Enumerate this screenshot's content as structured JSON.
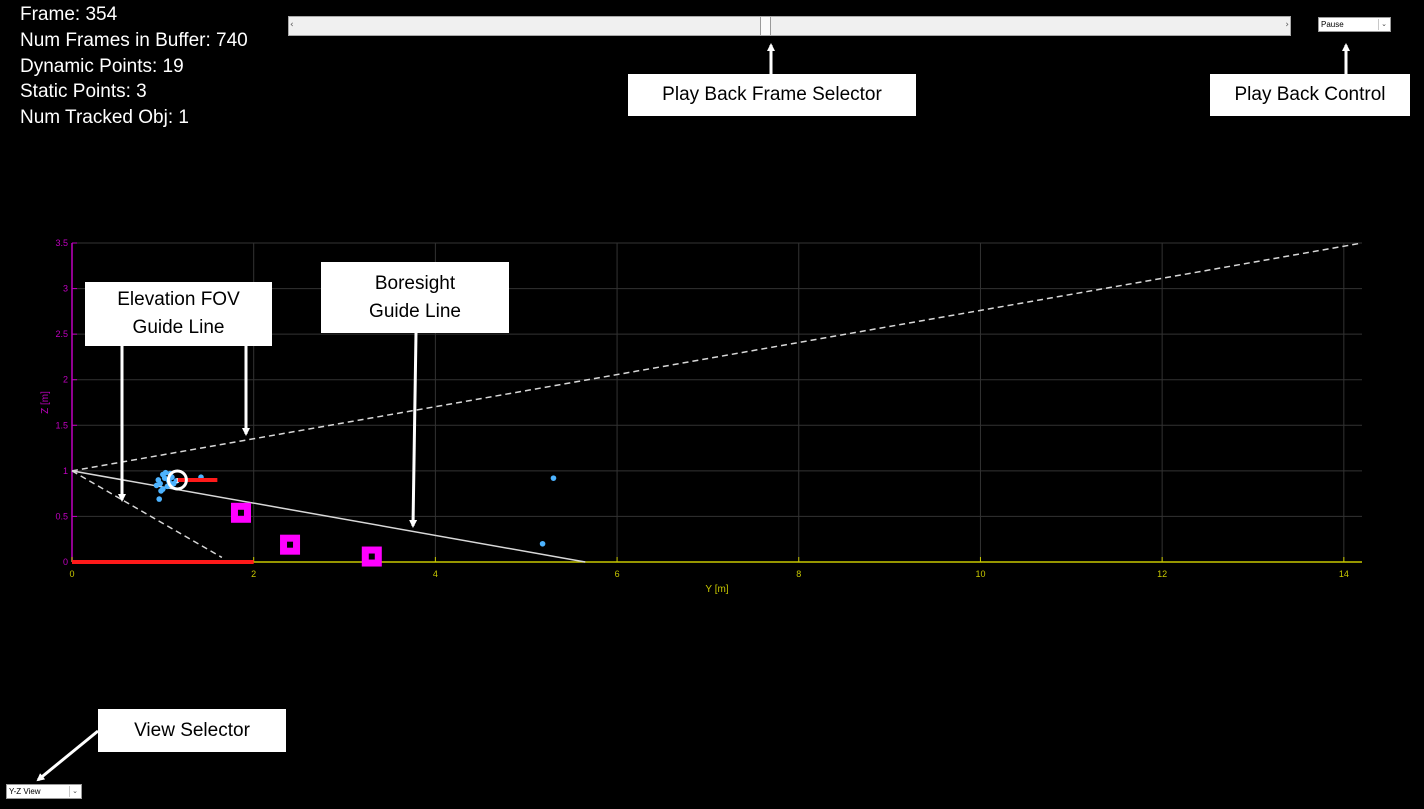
{
  "stats": {
    "frame": "Frame: 354",
    "num_frames_in_buffer": "Num Frames in Buffer: 740",
    "dynamic_points": "Dynamic Points: 19",
    "static_points": "Static Points: 3",
    "num_tracked_obj": "Num Tracked Obj: 1"
  },
  "playback": {
    "frame_position": 0.475,
    "control_value": "Pause"
  },
  "view_selector": {
    "value": "Y-Z View"
  },
  "callouts": {
    "frame_selector": "Play Back Frame Selector",
    "playback_control": "Play Back Control",
    "elevation_fov_line1": "Elevation FOV",
    "elevation_fov_line2": "Guide Line",
    "boresight_line1": "Boresight",
    "boresight_line2": "Guide Line",
    "view_selector": "View Selector"
  },
  "colors": {
    "background": "#000000",
    "x_axis": "#c8c800",
    "y_axis": "#c000c0",
    "grid": "#333333",
    "dynamic_point": "#4db3ff",
    "static_object": "#ff00ff",
    "track_vector": "#ff1a1a",
    "guide_line": "#d8d8d8"
  },
  "chart_data": {
    "type": "scatter",
    "title": "",
    "xlabel": "Y [m]",
    "ylabel": "Z [m]",
    "xlim": [
      0,
      14.2
    ],
    "ylim": [
      0,
      3.5
    ],
    "xticks": [
      "0",
      "2",
      "4",
      "6",
      "8",
      "10",
      "12",
      "14"
    ],
    "xtick_values": [
      0,
      2,
      4,
      6,
      8,
      10,
      12,
      14
    ],
    "yticks": [
      "0",
      "0.5",
      "1",
      "1.5",
      "2",
      "2.5",
      "3",
      "3.5"
    ],
    "ytick_values": [
      0,
      0.5,
      1,
      1.5,
      2,
      2.5,
      3,
      3.5
    ],
    "grid": true,
    "dynamic_points": [
      [
        0.97,
        0.86
      ],
      [
        1.02,
        0.92
      ],
      [
        1.07,
        0.88
      ],
      [
        1.0,
        0.96
      ],
      [
        0.95,
        0.9
      ],
      [
        1.05,
        0.83
      ],
      [
        1.1,
        0.93
      ],
      [
        0.98,
        0.78
      ],
      [
        1.12,
        0.86
      ],
      [
        1.03,
        0.98
      ],
      [
        0.93,
        0.84
      ],
      [
        1.08,
        0.97
      ],
      [
        1.15,
        0.89
      ],
      [
        0.96,
        0.69
      ],
      [
        1.42,
        0.93
      ],
      [
        1.0,
        0.8
      ],
      [
        1.06,
        0.9
      ],
      [
        5.3,
        0.92
      ],
      [
        5.18,
        0.2
      ]
    ],
    "static_points": [
      [
        1.86,
        0.54
      ],
      [
        2.4,
        0.19
      ],
      [
        3.3,
        0.06
      ]
    ],
    "tracked_object": {
      "position": [
        1.16,
        0.9
      ],
      "velocity_end": [
        1.6,
        0.9
      ],
      "id": "1"
    },
    "boresight_line": [
      [
        0,
        1
      ],
      [
        5.65,
        0
      ]
    ],
    "elevation_fov_upper": [
      [
        0,
        1
      ],
      [
        14.2,
        3.5
      ]
    ],
    "elevation_fov_lower": [
      [
        0,
        1
      ],
      [
        1.65,
        0.05
      ]
    ],
    "near_range_bar": [
      [
        0,
        0
      ],
      [
        2,
        0
      ]
    ]
  }
}
